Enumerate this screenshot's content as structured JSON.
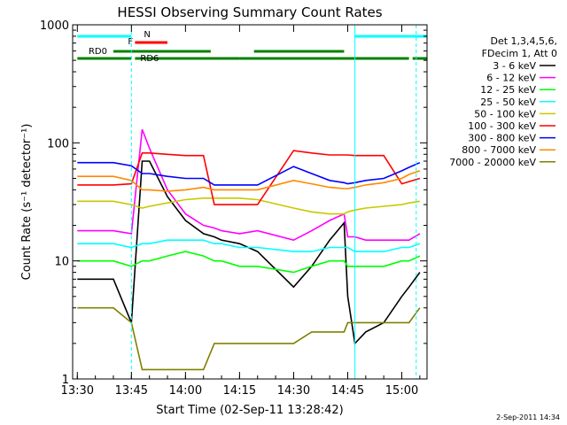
{
  "chart_data": {
    "type": "line",
    "title": "HESSI Observing Summary Count Rates",
    "xlabel": "Start Time (02-Sep-11 13:28:42)",
    "ylabel": "Count Rate (s⁻¹ detector⁻¹)",
    "y_scale": "log",
    "ylim": [
      1,
      1000
    ],
    "xlim": [
      "13:28:42",
      "15:07"
    ],
    "x_ticks": [
      "13:30",
      "13:45",
      "14:00",
      "14:15",
      "14:30",
      "14:45",
      "15:00"
    ],
    "y_ticks": [
      "1",
      "10",
      "100",
      "1000"
    ],
    "legend_header": [
      "Det 1,3,4,5,6,",
      "FDecim 1, Att 0"
    ],
    "legend_position": "right",
    "grid": false,
    "timestamp": "2-Sep-2011 14:34",
    "x": [
      "13:30",
      "13:40",
      "13:45",
      "13:48",
      "13:50",
      "13:55",
      "14:00",
      "14:05",
      "14:08",
      "14:10",
      "14:15",
      "14:20",
      "14:30",
      "14:35",
      "14:40",
      "14:44",
      "14:45",
      "14:47",
      "14:50",
      "14:55",
      "15:00",
      "15:02",
      "15:05"
    ],
    "series": [
      {
        "name": "3 - 6 keV",
        "color": "#000000",
        "values": [
          7,
          7,
          3,
          70,
          70,
          35,
          22,
          17,
          16,
          15,
          14,
          12,
          6,
          9,
          15,
          21,
          5,
          2,
          2.5,
          3,
          5,
          6,
          8
        ]
      },
      {
        "name": "6 - 12 keV",
        "color": "#ff00ff",
        "values": [
          18,
          18,
          17,
          130,
          90,
          40,
          25,
          20,
          19,
          18,
          17,
          18,
          15,
          18,
          22,
          25,
          16,
          16,
          15,
          15,
          15,
          15,
          17
        ]
      },
      {
        "name": "12 - 25 keV",
        "color": "#00ff00",
        "values": [
          10,
          10,
          9,
          10,
          10,
          11,
          12,
          11,
          10,
          10,
          9,
          9,
          8,
          9,
          10,
          10,
          9,
          9,
          9,
          9,
          10,
          10,
          11
        ]
      },
      {
        "name": "25 - 50 keV",
        "color": "#00ffff",
        "values": [
          14,
          14,
          13,
          14,
          14,
          15,
          15,
          15,
          14,
          14,
          13,
          13,
          12,
          12,
          13,
          13,
          13,
          12,
          12,
          12,
          13,
          13,
          14
        ]
      },
      {
        "name": "50 - 100 keV",
        "color": "#c8c800",
        "values": [
          32,
          32,
          30,
          28,
          29,
          31,
          33,
          34,
          34,
          34,
          34,
          33,
          28,
          26,
          25,
          25,
          26,
          27,
          28,
          29,
          30,
          31,
          32
        ]
      },
      {
        "name": "100 - 300 keV",
        "color": "#ff0000",
        "values": [
          44,
          44,
          45,
          82,
          82,
          80,
          78,
          78,
          30,
          30,
          30,
          30,
          86,
          82,
          79,
          79,
          79,
          78,
          78,
          78,
          45,
          47,
          50
        ]
      },
      {
        "name": "300 - 800 keV",
        "color": "#0000ff",
        "values": [
          68,
          68,
          64,
          55,
          55,
          52,
          50,
          50,
          44,
          44,
          44,
          44,
          63,
          55,
          48,
          46,
          45,
          46,
          48,
          50,
          58,
          62,
          68
        ]
      },
      {
        "name": "800 - 7000 keV",
        "color": "#ff8800",
        "values": [
          52,
          52,
          48,
          40,
          40,
          39,
          40,
          42,
          40,
          40,
          40,
          40,
          48,
          45,
          42,
          41,
          41,
          42,
          44,
          46,
          50,
          54,
          58
        ]
      },
      {
        "name": "7000 - 20000 keV",
        "color": "#808000",
        "values": [
          4,
          4,
          3,
          1.2,
          1.2,
          1.2,
          1.2,
          1.2,
          2,
          2,
          2,
          2,
          2,
          2.5,
          2.5,
          2.5,
          3,
          3,
          3,
          3,
          3,
          3,
          4
        ]
      }
    ],
    "status_bars": [
      {
        "label": "N",
        "color": "#00ffff",
        "segments": [
          [
            "13:30",
            "13:45"
          ],
          [
            "14:47",
            "15:07"
          ]
        ]
      },
      {
        "label": "F",
        "color": "#ff0000",
        "segments": [
          [
            "13:46",
            "13:55"
          ]
        ]
      },
      {
        "label": "RD0",
        "color": "#008000",
        "segments": [
          [
            "13:40",
            "14:07"
          ],
          [
            "14:19",
            "14:44"
          ]
        ]
      },
      {
        "label": "RD6",
        "color": "#008000",
        "segments": [
          [
            "13:30",
            "13:45"
          ],
          [
            "13:46",
            "14:15"
          ],
          [
            "14:15",
            "15:02"
          ],
          [
            "15:03",
            "15:07"
          ]
        ]
      }
    ],
    "vertical_markers": [
      {
        "time": "13:45",
        "style": "dashed",
        "color": "#00ffff"
      },
      {
        "time": "14:47",
        "style": "solid",
        "color": "#00ffff"
      },
      {
        "time": "15:04",
        "style": "dashed",
        "color": "#00ffff"
      }
    ]
  }
}
